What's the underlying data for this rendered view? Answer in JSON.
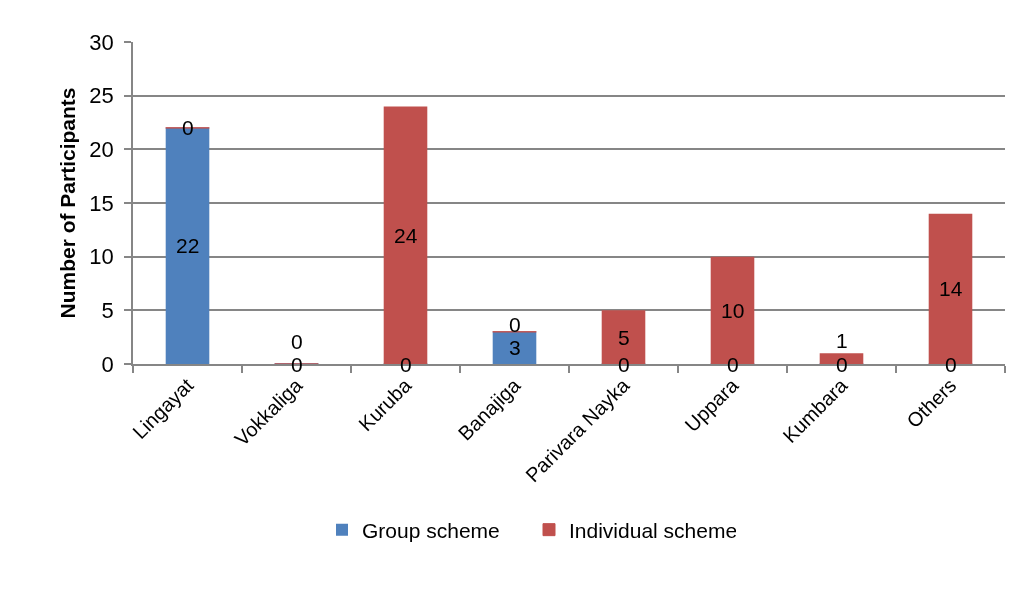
{
  "chart_data": {
    "type": "bar",
    "stacked": true,
    "ylabel": "Number of Participants",
    "categories": [
      "Lingayat",
      "Vokkaliga",
      "Kuruba",
      "Banajiga",
      "Parivara Nayka",
      "Uppara",
      "Kumbara",
      "Others"
    ],
    "series": [
      {
        "name": "Group scheme",
        "color": "#4f81bd",
        "values": [
          22,
          0,
          0,
          3,
          0,
          0,
          0,
          0
        ]
      },
      {
        "name": "Individual scheme",
        "color": "#c0504d",
        "values": [
          0,
          0,
          24,
          0,
          5,
          10,
          1,
          14
        ]
      }
    ],
    "ylim": [
      0,
      30
    ],
    "yticks": [
      0,
      5,
      10,
      15,
      20,
      25,
      30
    ],
    "grid": "y",
    "legend": "bottom",
    "data_labels": true
  }
}
